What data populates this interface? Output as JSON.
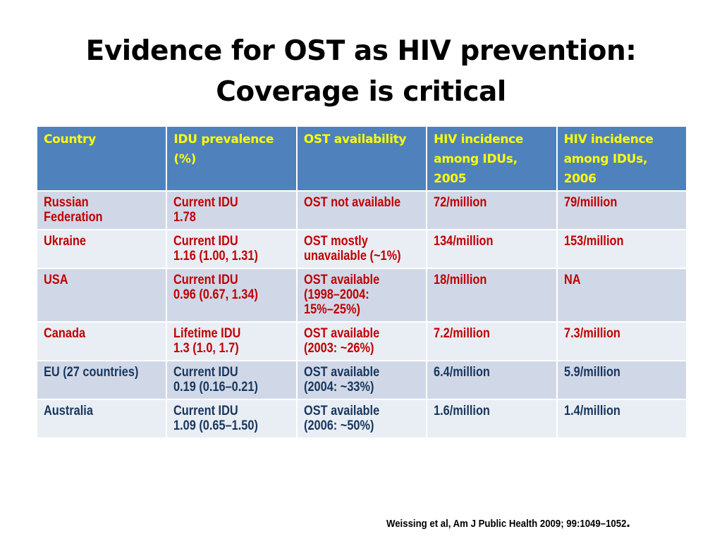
{
  "title": {
    "line1": "Evidence for OST as HIV prevention:",
    "line2": "Coverage is critical"
  },
  "table": {
    "headers": [
      "Country",
      "IDU prevalence (%)",
      "OST availability",
      "HIV incidence among IDUs, 2005",
      "HIV incidence among IDUs, 2006"
    ],
    "rows": [
      {
        "country": [
          "Russian",
          "Federation"
        ],
        "prevalence": [
          "Current IDU",
          "1.78"
        ],
        "ost": [
          "OST not available"
        ],
        "hiv2005": "72/million",
        "hiv2006": "79/million"
      },
      {
        "country": [
          "Ukraine"
        ],
        "prevalence": [
          "Current IDU",
          "1.16 (1.00, 1.31)"
        ],
        "ost": [
          "OST mostly",
          "unavailable (~1%)"
        ],
        "hiv2005": "134/million",
        "hiv2006": "153/million"
      },
      {
        "country": [
          "USA"
        ],
        "prevalence": [
          "Current IDU",
          "0.96 (0.67, 1.34)"
        ],
        "ost": [
          "OST available",
          "(1998–2004:",
          "15%–25%)"
        ],
        "hiv2005": "18/million",
        "hiv2006": "NA"
      },
      {
        "country": [
          "Canada"
        ],
        "prevalence": [
          "Lifetime IDU",
          "1.3 (1.0, 1.7)"
        ],
        "ost": [
          "OST available",
          "(2003: ~26%)"
        ],
        "hiv2005": "7.2/million",
        "hiv2006": "7.3/million"
      },
      {
        "country": [
          "EU (27 countries)"
        ],
        "prevalence": [
          "Current IDU",
          "0.19 (0.16–0.21)"
        ],
        "ost": [
          "OST available",
          "(2004: ~33%)"
        ],
        "hiv2005": "6.4/million",
        "hiv2006": "5.9/million"
      },
      {
        "country": [
          "Australia"
        ],
        "prevalence": [
          "Current IDU",
          "1.09 (0.65–1.50)"
        ],
        "ost": [
          "OST available",
          "(2006: ~50%)"
        ],
        "hiv2005": "1.6/million",
        "hiv2006": "1.4/million"
      }
    ]
  },
  "citation": "Weissing et al, Am J Public Health 2009; 99:1049–1052",
  "citation_end": ".",
  "colors": {
    "header_bg": "#4f81bd",
    "header_text": "#ffff00",
    "row_odd": "#d0d8e8",
    "row_even": "#e9edf4",
    "red_text": "#c00000",
    "navy_text": "#17365d"
  }
}
